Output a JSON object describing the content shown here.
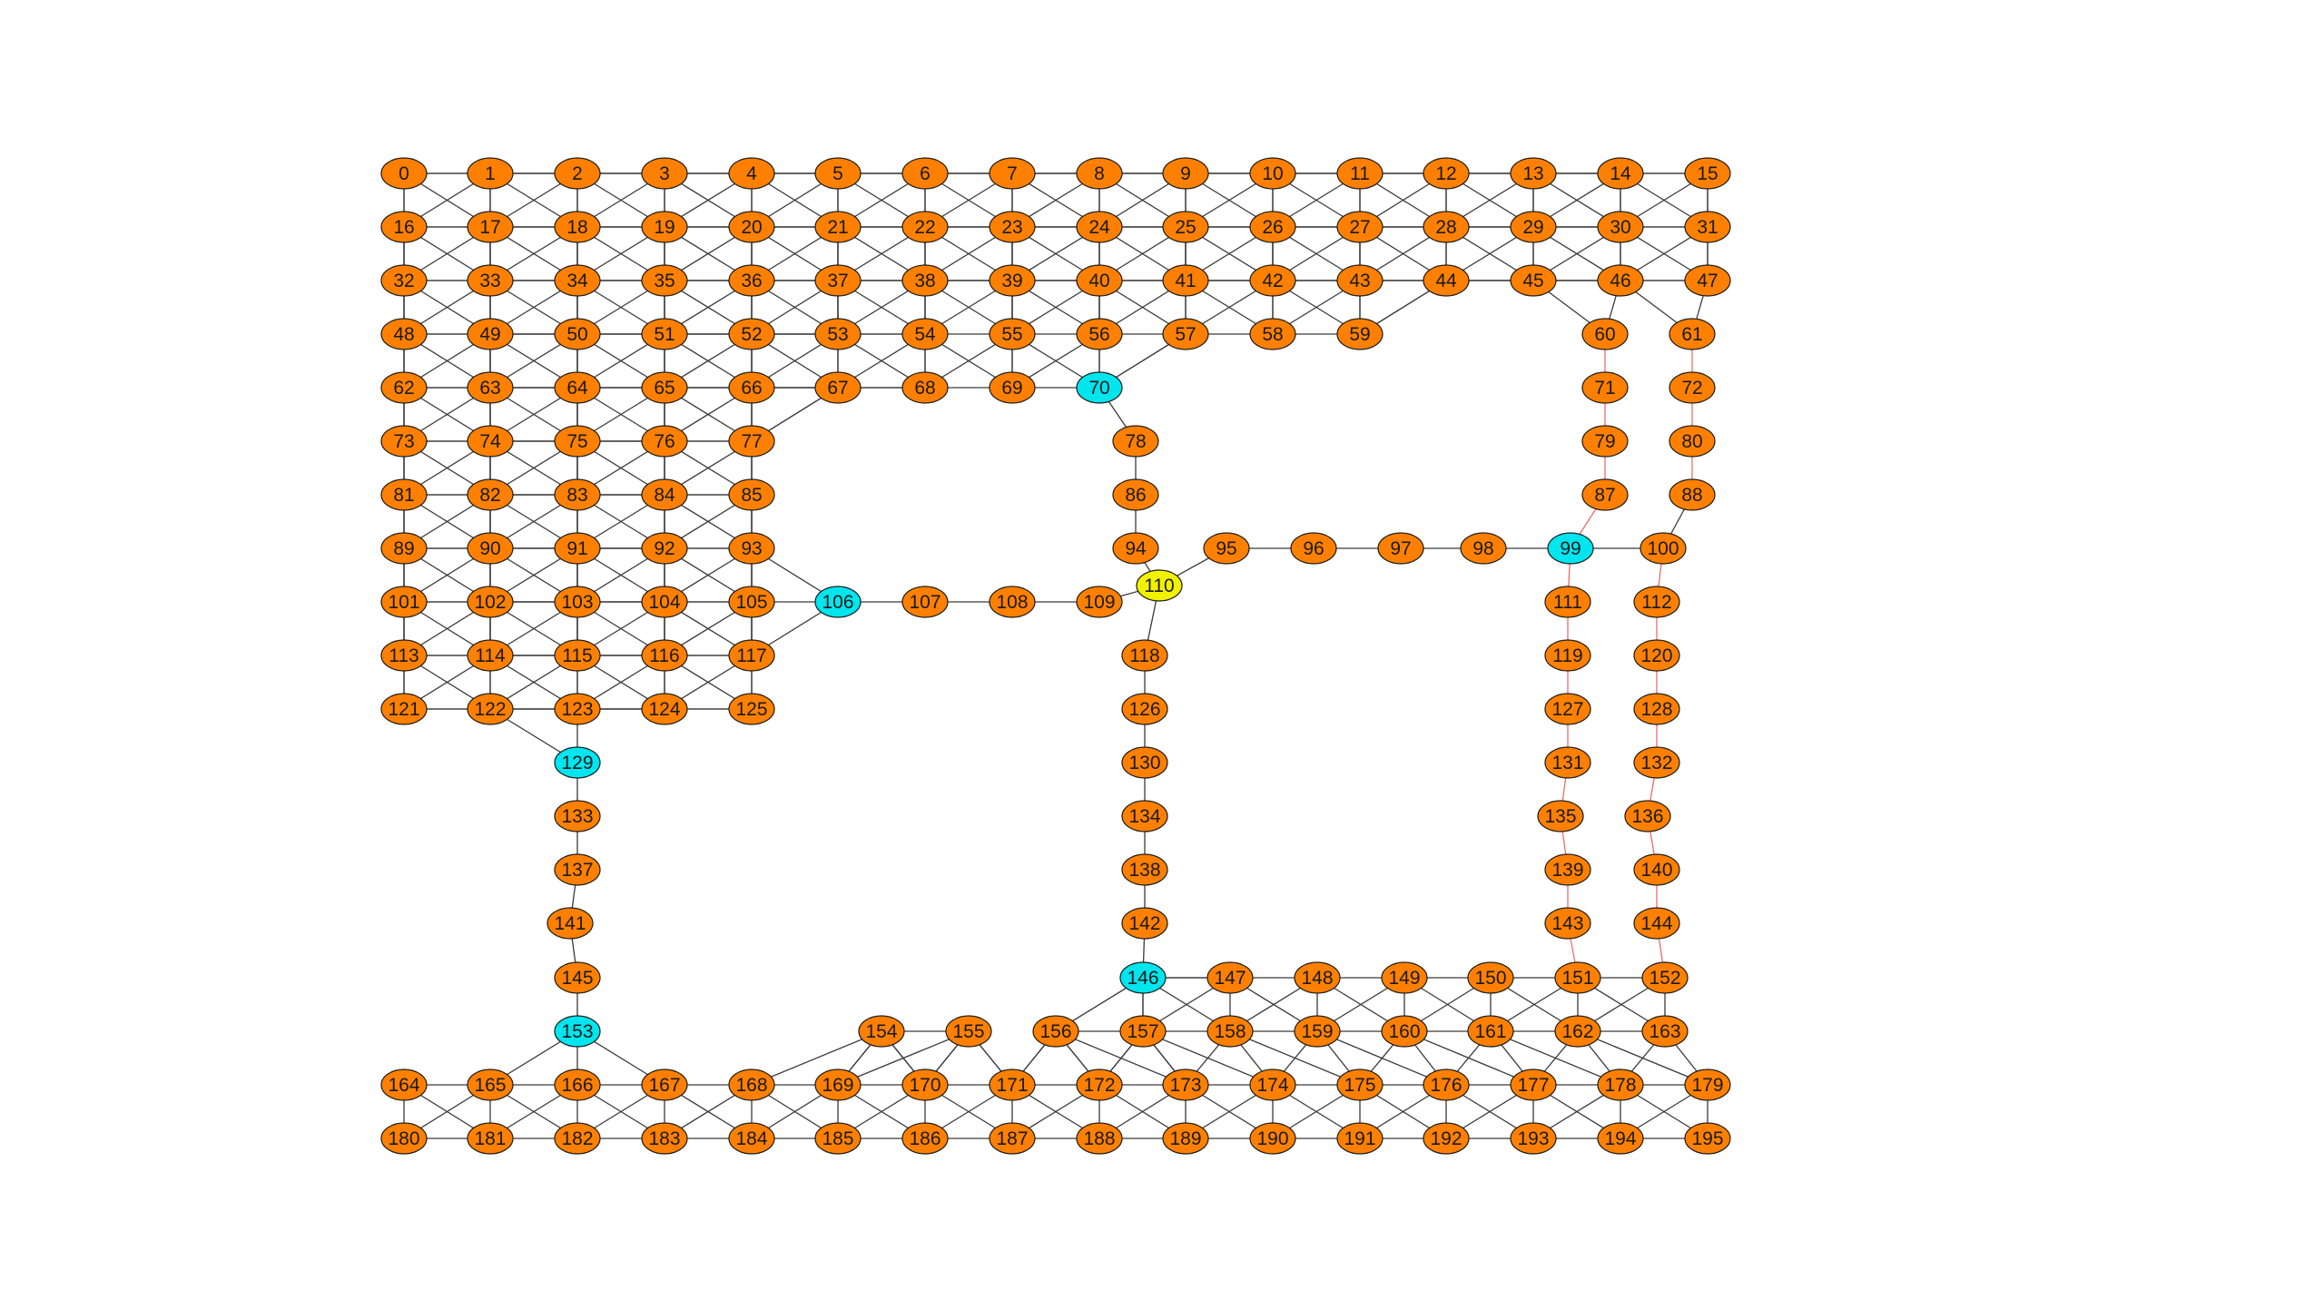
{
  "graph": {
    "colors": {
      "orange": "#ff8000",
      "cyan": "#00e5ee",
      "yellow": "#f2f200",
      "stroke": "#1a1a1a",
      "edge": "#3a3a3a",
      "red_edge": "#f06a6a"
    },
    "highlight_nodes": {
      "cyan": [
        70,
        99,
        106,
        129,
        146,
        153
      ],
      "yellow": [
        110
      ]
    },
    "grid_rows": [
      {
        "row": 0,
        "nodes": [
          0,
          1,
          2,
          3,
          4,
          5,
          6,
          7,
          8,
          9,
          10,
          11,
          12,
          13,
          14,
          15
        ]
      },
      {
        "row": 1,
        "nodes": [
          16,
          17,
          18,
          19,
          20,
          21,
          22,
          23,
          24,
          25,
          26,
          27,
          28,
          29,
          30,
          31
        ]
      },
      {
        "row": 2,
        "nodes": [
          32,
          33,
          34,
          35,
          36,
          37,
          38,
          39,
          40,
          41,
          42,
          43,
          44,
          45,
          46,
          47
        ]
      },
      {
        "row": 3,
        "nodes": [
          48,
          49,
          50,
          51,
          52,
          53,
          54,
          55,
          56,
          57,
          58,
          59
        ]
      },
      {
        "row": 4,
        "nodes": [
          62,
          63,
          64,
          65,
          66,
          67,
          68,
          69,
          70
        ]
      },
      {
        "row": 5,
        "nodes": [
          73,
          74,
          75,
          76,
          77
        ]
      },
      {
        "row": 6,
        "nodes": [
          81,
          82,
          83,
          84,
          85
        ]
      },
      {
        "row": 7,
        "nodes": [
          89,
          90,
          91,
          92,
          93
        ]
      },
      {
        "row": 8,
        "nodes": [
          101,
          102,
          103,
          104,
          105
        ]
      },
      {
        "row": 9,
        "nodes": [
          113,
          114,
          115,
          116,
          117
        ]
      },
      {
        "row": 10,
        "nodes": [
          121,
          122,
          123,
          124,
          125
        ]
      }
    ],
    "bottom_rows": [
      {
        "row": 0,
        "nodes": [
          146,
          147,
          148,
          149,
          150,
          151,
          152
        ]
      },
      {
        "row": 1,
        "nodes": [
          154,
          155,
          156,
          157,
          158,
          159,
          160,
          161,
          162,
          163
        ]
      },
      {
        "row": 2,
        "nodes": [
          164,
          165,
          166,
          167,
          168,
          169,
          170,
          171,
          172,
          173,
          174,
          175,
          176,
          177,
          178,
          179
        ]
      },
      {
        "row": 3,
        "nodes": [
          180,
          181,
          182,
          183,
          184,
          185,
          186,
          187,
          188,
          189,
          190,
          191,
          192,
          193,
          194,
          195
        ]
      }
    ],
    "edges": [
      [
        59,
        44
      ],
      [
        57,
        70
      ],
      [
        77,
        67
      ],
      [
        70,
        78
      ],
      [
        78,
        86
      ],
      [
        86,
        94
      ],
      [
        94,
        110
      ],
      [
        93,
        106
      ],
      [
        105,
        106
      ],
      [
        117,
        106
      ],
      [
        106,
        107
      ],
      [
        107,
        108
      ],
      [
        108,
        109
      ],
      [
        109,
        110
      ],
      [
        110,
        95
      ],
      [
        95,
        96
      ],
      [
        96,
        97
      ],
      [
        97,
        98
      ],
      [
        98,
        99
      ],
      [
        99,
        100
      ],
      [
        110,
        118
      ],
      [
        118,
        126
      ],
      [
        126,
        130
      ],
      [
        130,
        134
      ],
      [
        134,
        138
      ],
      [
        138,
        142
      ],
      [
        142,
        146
      ],
      [
        122,
        129
      ],
      [
        123,
        129
      ],
      [
        129,
        133
      ],
      [
        133,
        137
      ],
      [
        137,
        141
      ],
      [
        141,
        145
      ],
      [
        145,
        153
      ],
      [
        153,
        165
      ],
      [
        153,
        166
      ],
      [
        153,
        167
      ],
      [
        146,
        156
      ],
      [
        146,
        157
      ],
      [
        146,
        147
      ],
      [
        154,
        169
      ],
      [
        154,
        170
      ],
      [
        155,
        170
      ],
      [
        155,
        171
      ],
      [
        156,
        171
      ],
      [
        156,
        172
      ],
      [
        157,
        172
      ],
      [
        157,
        173
      ],
      [
        45,
        60
      ],
      [
        46,
        60
      ],
      [
        46,
        61
      ],
      [
        47,
        61
      ],
      [
        100,
        88
      ]
    ],
    "red_edges": [
      [
        60,
        71
      ],
      [
        71,
        79
      ],
      [
        79,
        87
      ],
      [
        87,
        99
      ],
      [
        61,
        72
      ],
      [
        72,
        80
      ],
      [
        80,
        88
      ],
      [
        99,
        111
      ],
      [
        111,
        119
      ],
      [
        119,
        127
      ],
      [
        127,
        131
      ],
      [
        131,
        135
      ],
      [
        135,
        139
      ],
      [
        139,
        143
      ],
      [
        143,
        151
      ],
      [
        100,
        112
      ],
      [
        112,
        120
      ],
      [
        120,
        128
      ],
      [
        128,
        132
      ],
      [
        132,
        136
      ],
      [
        136,
        140
      ],
      [
        140,
        144
      ],
      [
        144,
        152
      ]
    ]
  }
}
